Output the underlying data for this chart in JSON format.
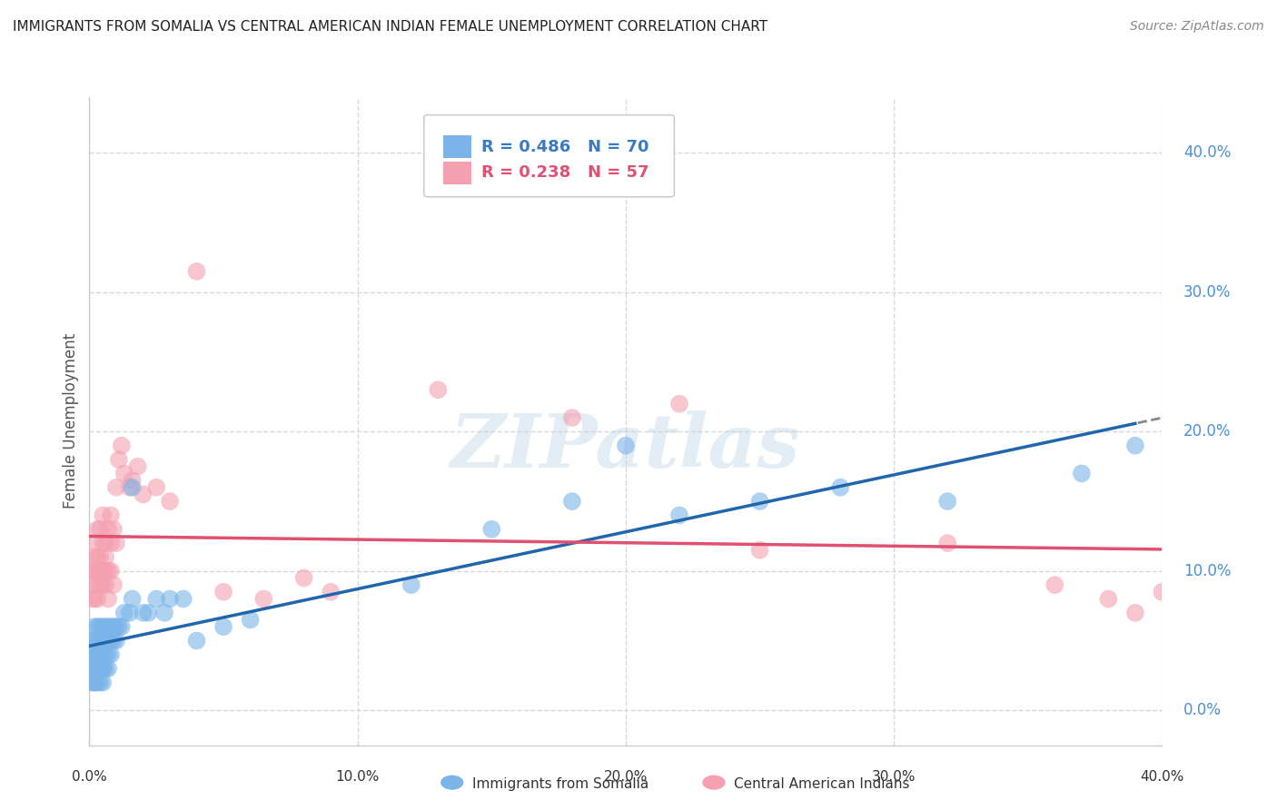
{
  "title": "IMMIGRANTS FROM SOMALIA VS CENTRAL AMERICAN INDIAN FEMALE UNEMPLOYMENT CORRELATION CHART",
  "source": "Source: ZipAtlas.com",
  "ylabel": "Female Unemployment",
  "xmin": 0.0,
  "xmax": 0.4,
  "ymin": -0.025,
  "ymax": 0.44,
  "yticks": [
    0.0,
    0.1,
    0.2,
    0.3,
    0.4
  ],
  "ytick_labels": [
    "0.0%",
    "10.0%",
    "20.0%",
    "30.0%",
    "40.0%"
  ],
  "xticks": [
    0.0,
    0.1,
    0.2,
    0.3,
    0.4
  ],
  "xtick_labels": [
    "0.0%",
    "10.0%",
    "20.0%",
    "30.0%",
    "40.0%"
  ],
  "series1_label": "Immigrants from Somalia",
  "series1_color": "#7ab4e8",
  "series1_line_color": "#2166ac",
  "series1_R": 0.486,
  "series1_N": 70,
  "series2_label": "Central American Indians",
  "series2_color": "#f4a0b0",
  "series2_line_color": "#e05070",
  "series2_R": 0.238,
  "series2_N": 57,
  "watermark_text": "ZIPatlas",
  "background_color": "#ffffff",
  "grid_color": "#d8d8d8",
  "right_axis_color": "#4a90d9",
  "somalia_x": [
    0.001,
    0.001,
    0.001,
    0.001,
    0.002,
    0.002,
    0.002,
    0.002,
    0.002,
    0.002,
    0.002,
    0.003,
    0.003,
    0.003,
    0.003,
    0.003,
    0.003,
    0.003,
    0.004,
    0.004,
    0.004,
    0.004,
    0.004,
    0.004,
    0.005,
    0.005,
    0.005,
    0.005,
    0.005,
    0.005,
    0.006,
    0.006,
    0.006,
    0.006,
    0.007,
    0.007,
    0.007,
    0.007,
    0.008,
    0.008,
    0.008,
    0.009,
    0.009,
    0.01,
    0.01,
    0.011,
    0.012,
    0.013,
    0.015,
    0.016,
    0.016,
    0.02,
    0.022,
    0.025,
    0.028,
    0.03,
    0.035,
    0.04,
    0.05,
    0.06,
    0.12,
    0.15,
    0.18,
    0.2,
    0.22,
    0.25,
    0.28,
    0.32,
    0.37,
    0.39
  ],
  "somalia_y": [
    0.03,
    0.04,
    0.02,
    0.05,
    0.03,
    0.04,
    0.02,
    0.05,
    0.03,
    0.06,
    0.02,
    0.04,
    0.03,
    0.05,
    0.02,
    0.06,
    0.03,
    0.04,
    0.03,
    0.05,
    0.02,
    0.04,
    0.06,
    0.03,
    0.04,
    0.03,
    0.05,
    0.02,
    0.06,
    0.03,
    0.04,
    0.05,
    0.03,
    0.06,
    0.04,
    0.05,
    0.03,
    0.06,
    0.05,
    0.04,
    0.06,
    0.05,
    0.06,
    0.05,
    0.06,
    0.06,
    0.06,
    0.07,
    0.07,
    0.08,
    0.16,
    0.07,
    0.07,
    0.08,
    0.07,
    0.08,
    0.08,
    0.05,
    0.06,
    0.065,
    0.09,
    0.13,
    0.15,
    0.19,
    0.14,
    0.15,
    0.16,
    0.15,
    0.17,
    0.19
  ],
  "ca_indian_x": [
    0.001,
    0.001,
    0.002,
    0.002,
    0.002,
    0.002,
    0.002,
    0.003,
    0.003,
    0.003,
    0.003,
    0.003,
    0.004,
    0.004,
    0.004,
    0.004,
    0.005,
    0.005,
    0.005,
    0.005,
    0.006,
    0.006,
    0.006,
    0.006,
    0.007,
    0.007,
    0.007,
    0.008,
    0.008,
    0.008,
    0.009,
    0.009,
    0.01,
    0.01,
    0.011,
    0.012,
    0.013,
    0.015,
    0.016,
    0.018,
    0.02,
    0.025,
    0.03,
    0.04,
    0.05,
    0.065,
    0.08,
    0.09,
    0.13,
    0.18,
    0.22,
    0.25,
    0.32,
    0.36,
    0.38,
    0.39,
    0.4
  ],
  "ca_indian_y": [
    0.08,
    0.1,
    0.09,
    0.11,
    0.08,
    0.12,
    0.1,
    0.09,
    0.11,
    0.08,
    0.13,
    0.1,
    0.09,
    0.11,
    0.13,
    0.1,
    0.09,
    0.12,
    0.1,
    0.14,
    0.1,
    0.12,
    0.09,
    0.11,
    0.1,
    0.13,
    0.08,
    0.12,
    0.14,
    0.1,
    0.13,
    0.09,
    0.12,
    0.16,
    0.18,
    0.19,
    0.17,
    0.16,
    0.165,
    0.175,
    0.155,
    0.16,
    0.15,
    0.315,
    0.085,
    0.08,
    0.095,
    0.085,
    0.23,
    0.21,
    0.22,
    0.115,
    0.12,
    0.09,
    0.08,
    0.07,
    0.085
  ]
}
